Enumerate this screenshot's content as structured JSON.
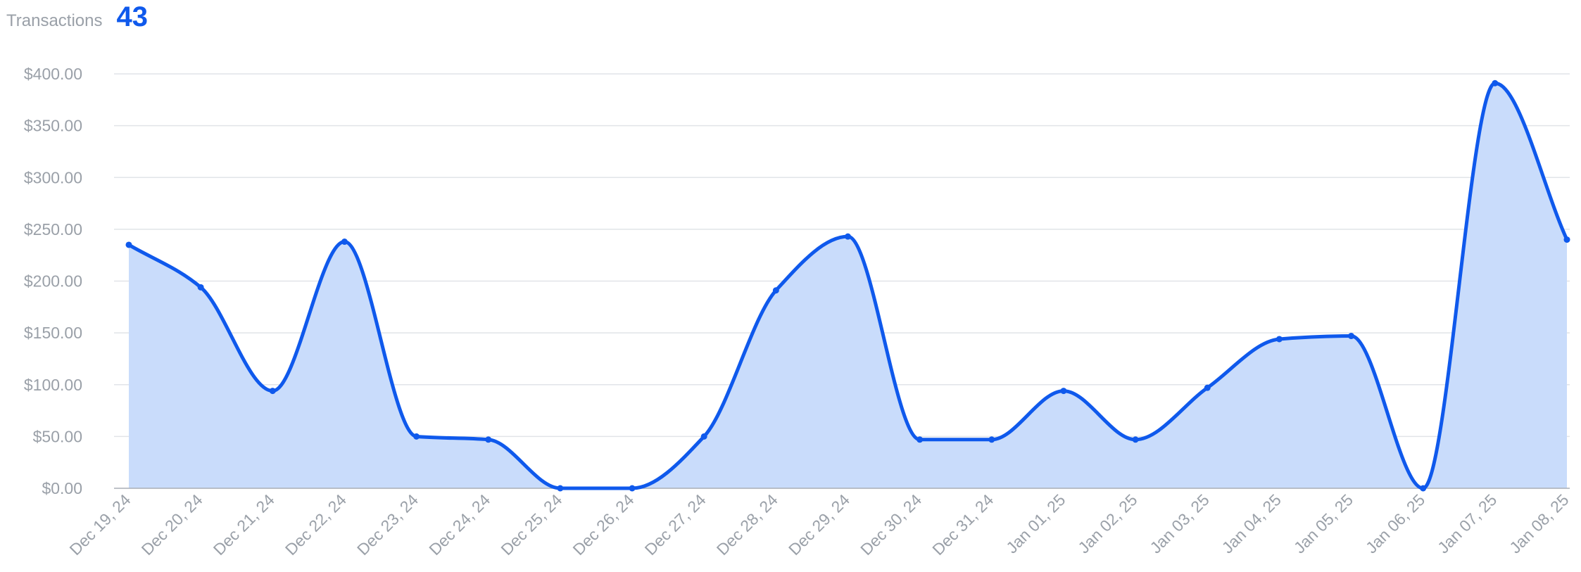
{
  "header": {
    "label": "Transactions",
    "value": "43"
  },
  "colors": {
    "accent": "#0f59ec",
    "fill": "#c9dcfb"
  },
  "chart_data": {
    "type": "area",
    "title": "",
    "xlabel": "",
    "ylabel": "",
    "ylim": [
      0,
      400
    ],
    "grid": true,
    "y_ticks": [
      "$0.00",
      "$50.00",
      "$100.00",
      "$150.00",
      "$200.00",
      "$250.00",
      "$300.00",
      "$350.00",
      "$400.00"
    ],
    "categories": [
      "Dec 19, 24",
      "Dec 20, 24",
      "Dec 21, 24",
      "Dec 22, 24",
      "Dec 23, 24",
      "Dec 24, 24",
      "Dec 25, 24",
      "Dec 26, 24",
      "Dec 27, 24",
      "Dec 28, 24",
      "Dec 29, 24",
      "Dec 30, 24",
      "Dec 31, 24",
      "Jan 01, 25",
      "Jan 02, 25",
      "Jan 03, 25",
      "Jan 04, 25",
      "Jan 05, 25",
      "Jan 06, 25",
      "Jan 07, 25",
      "Jan 08, 25"
    ],
    "values": [
      235,
      194,
      94,
      238,
      50,
      47,
      0,
      0,
      50,
      191,
      243,
      47,
      47,
      94,
      47,
      97,
      144,
      147,
      0,
      391,
      240
    ]
  }
}
